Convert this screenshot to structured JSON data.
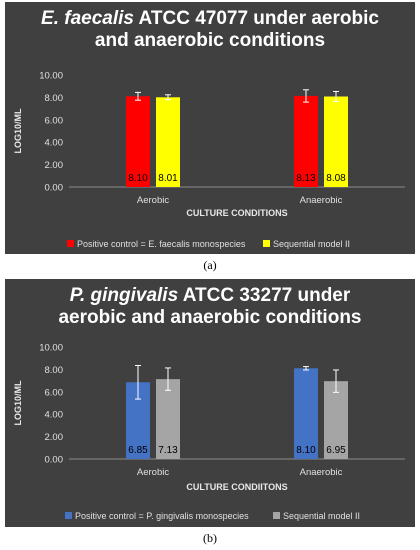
{
  "chart_data": [
    {
      "type": "bar",
      "title_species": "E. faecalis",
      "title_line1_rest": " ATCC 47077 under aerobic",
      "title_line2": "and anaerobic conditions",
      "ylabel": "LOG10/ML",
      "xlabel": "CULTURE CONDITIONS",
      "ylim": [
        0,
        10
      ],
      "ytick_labels": [
        "0.00",
        "2.00",
        "4.00",
        "6.00",
        "8.00",
        "10.00"
      ],
      "categories": [
        "Aerobic",
        "Anaerobic"
      ],
      "series": [
        {
          "name": "Positive control = E. faecalis monospecies",
          "color": "#ff0000",
          "values": [
            8.1,
            8.13
          ],
          "labels": [
            "8.10",
            "8.13"
          ],
          "err": [
            0.35,
            0.55
          ]
        },
        {
          "name": "Sequential model II",
          "color": "#ffff00",
          "values": [
            8.01,
            8.08
          ],
          "labels": [
            "8.01",
            "8.08"
          ],
          "err": [
            0.22,
            0.45
          ]
        }
      ],
      "legend": "bottom",
      "grid": false,
      "caption": "(a)"
    },
    {
      "type": "bar",
      "title_species": "P. gingivalis",
      "title_line1_rest": " ATCC 33277 under",
      "title_line2": "aerobic and anaerobic conditions",
      "ylabel": "LOG10/ML",
      "xlabel": "CULTURE CONDIITONS",
      "ylim": [
        0,
        10
      ],
      "ytick_labels": [
        "0.00",
        "2.00",
        "4.00",
        "6.00",
        "8.00",
        "10.00"
      ],
      "categories": [
        "Aerobic",
        "Anaerobic"
      ],
      "series": [
        {
          "name": "Positive control = P. gingivalis monospecies",
          "color": "#4472c4",
          "values": [
            6.85,
            8.1
          ],
          "labels": [
            "6.85",
            "8.10"
          ],
          "err": [
            1.5,
            0.15
          ]
        },
        {
          "name": "Sequential model II",
          "color": "#a5a5a5",
          "values": [
            7.13,
            6.95
          ],
          "labels": [
            "7.13",
            "6.95"
          ],
          "err": [
            1.0,
            1.0
          ]
        }
      ],
      "legend": "bottom",
      "grid": false,
      "caption": "(b)"
    }
  ]
}
